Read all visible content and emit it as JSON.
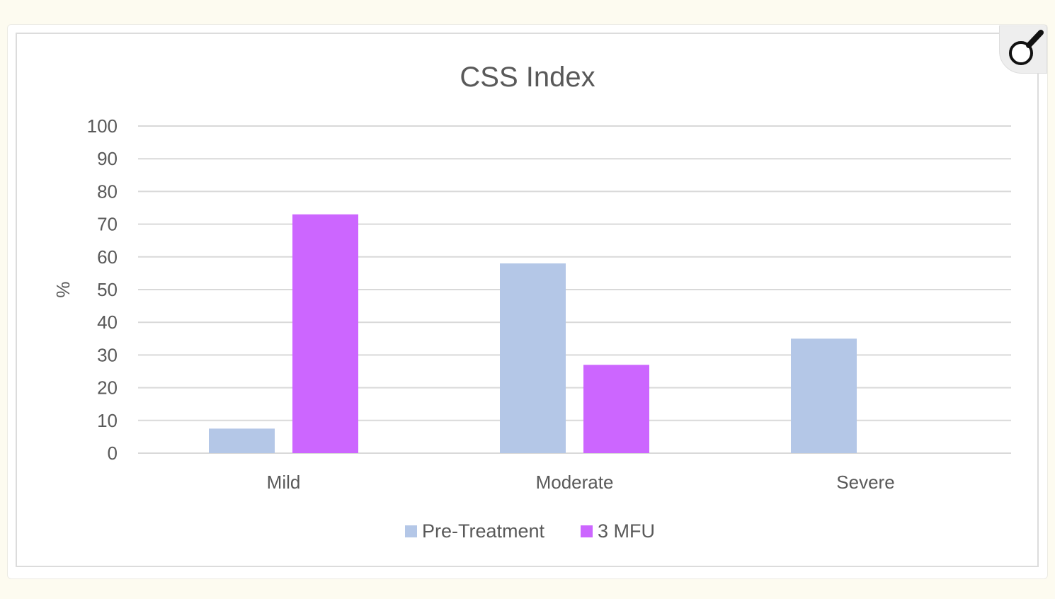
{
  "chart_data": {
    "type": "bar",
    "title": "CSS Index",
    "xlabel": "",
    "ylabel": "%",
    "ylim": [
      0,
      100
    ],
    "yticks": [
      "0",
      "10",
      "20",
      "30",
      "40",
      "50",
      "60",
      "70",
      "80",
      "90",
      "100"
    ],
    "categories": [
      "Mild",
      "Moderate",
      "Severe"
    ],
    "series": [
      {
        "name": "Pre-Treatment",
        "color": "#b4c7e7",
        "values": [
          7.5,
          58,
          35
        ]
      },
      {
        "name": "3 MFU",
        "color": "#cc66ff",
        "values": [
          73,
          27,
          0
        ]
      }
    ],
    "grid": true,
    "legend_position": "bottom"
  },
  "controls": {
    "zoom_icon": "magnifier-icon"
  }
}
